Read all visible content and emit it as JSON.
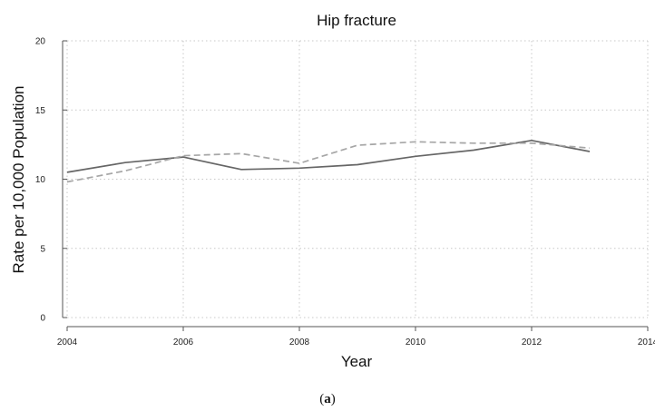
{
  "chart_data": {
    "type": "line",
    "title": "Hip fracture",
    "xlabel": "Year",
    "ylabel": "Rate per 10,000 Population",
    "xlim": [
      2004,
      2014
    ],
    "ylim": [
      0,
      20
    ],
    "xticks": [
      "2004",
      "2006",
      "2008",
      "2010",
      "2012",
      "2014"
    ],
    "yticks": [
      "0",
      "5",
      "10",
      "15",
      "20"
    ],
    "grid": true,
    "x": [
      2004,
      2005,
      2006,
      2007,
      2008,
      2009,
      2010,
      2011,
      2012,
      2013
    ],
    "series": [
      {
        "style": "solid",
        "color": "#666666",
        "values": [
          10.5,
          11.2,
          11.6,
          10.7,
          10.8,
          11.05,
          11.65,
          12.1,
          12.8,
          12.0
        ]
      },
      {
        "style": "dashed",
        "color": "#a6a6a6",
        "values": [
          9.8,
          10.6,
          11.7,
          11.85,
          11.15,
          12.45,
          12.7,
          12.6,
          12.6,
          12.25
        ]
      }
    ]
  },
  "caption": {
    "open": "(",
    "label": "a",
    "close": ")"
  }
}
